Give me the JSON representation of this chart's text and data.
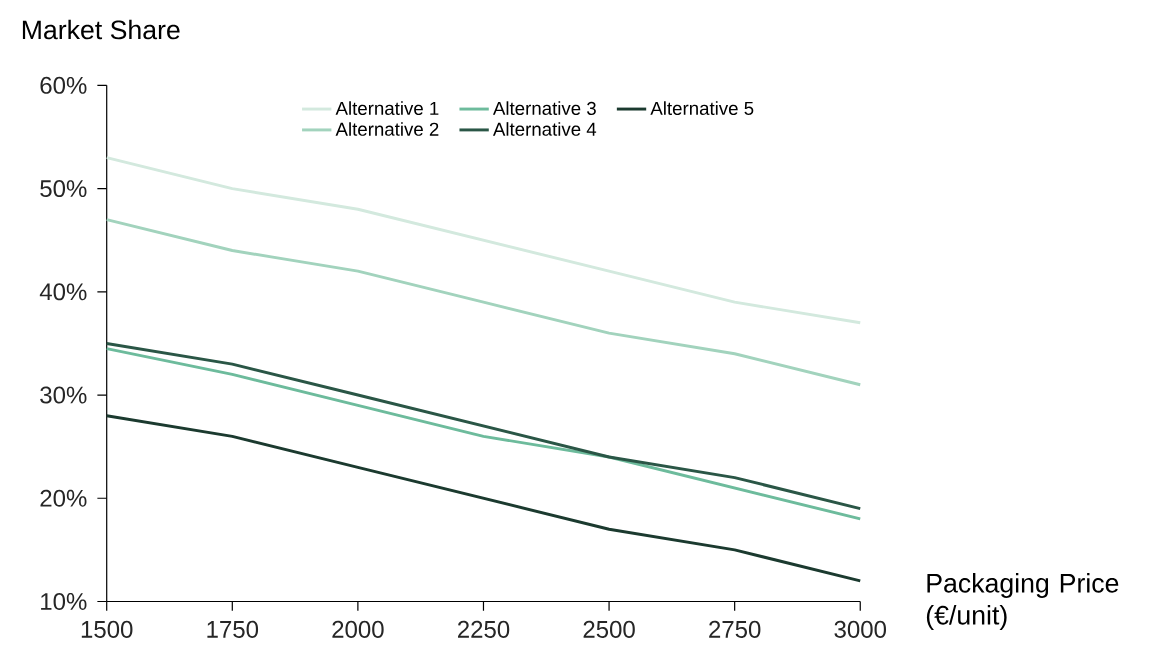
{
  "chart_data": {
    "type": "line",
    "ylabel": "Market Share",
    "xlabel": "Packaging Price (€/unit)",
    "x": [
      1500,
      1750,
      2000,
      2250,
      2500,
      2750,
      3000
    ],
    "series": [
      {
        "name": "Alternative 1",
        "color": "#d3e9de",
        "values": [
          53,
          50,
          48,
          45,
          42,
          39,
          37
        ]
      },
      {
        "name": "Alternative 2",
        "color": "#a2d3bd",
        "values": [
          47,
          44,
          42,
          39,
          36,
          34,
          31
        ]
      },
      {
        "name": "Alternative 3",
        "color": "#6dbb9c",
        "values": [
          34.5,
          32,
          29,
          26,
          24,
          21,
          18
        ]
      },
      {
        "name": "Alternative 4",
        "color": "#2a5646",
        "values": [
          35,
          33,
          30,
          27,
          24,
          22,
          19
        ]
      },
      {
        "name": "Alternative 5",
        "color": "#1b3a2f",
        "values": [
          28,
          26,
          23,
          20,
          17,
          15,
          12
        ]
      }
    ],
    "xlim": [
      1500,
      3000
    ],
    "ylim": [
      10,
      60
    ],
    "xticks": [
      1500,
      1750,
      2000,
      2250,
      2500,
      2750,
      3000
    ],
    "yticks": [
      {
        "value": 10,
        "label": "10%"
      },
      {
        "value": 20,
        "label": "20%"
      },
      {
        "value": 30,
        "label": "30%"
      },
      {
        "value": 40,
        "label": "40%"
      },
      {
        "value": 50,
        "label": "50%"
      },
      {
        "value": 60,
        "label": "60%"
      }
    ],
    "grid": false,
    "legend": "top",
    "line_style": "solid"
  }
}
